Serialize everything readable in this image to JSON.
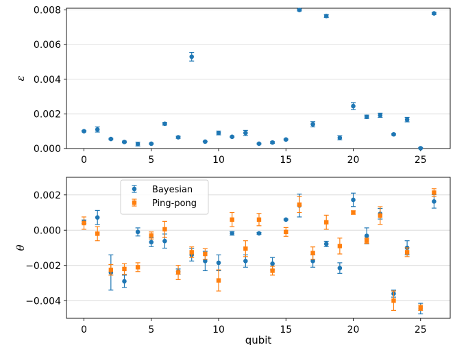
{
  "chart_data": [
    {
      "type": "scatter",
      "ylabel": "ε",
      "xlabel": "",
      "xlim": [
        -1.3,
        27.2
      ],
      "ylim": [
        0,
        0.0081
      ],
      "xticks": [
        0,
        5,
        10,
        15,
        20,
        25
      ],
      "yticks": [
        0.0,
        0.002,
        0.004,
        0.006,
        0.008
      ],
      "ytick_labels": [
        "0.000",
        "0.002",
        "0.004",
        "0.006",
        "0.008"
      ],
      "grid": "horizontal",
      "colors": {
        "series": "#1f77b4"
      },
      "series": [
        {
          "x": [
            0,
            1,
            2,
            3,
            4,
            5,
            6,
            7,
            8,
            9,
            10,
            11,
            12,
            13,
            14,
            15,
            16,
            17,
            18,
            19,
            20,
            21,
            22,
            23,
            24,
            25,
            26
          ],
          "y": [
            0.001,
            0.0011,
            0.00055,
            0.00038,
            0.00026,
            0.00028,
            0.00143,
            0.00065,
            0.0053,
            0.0004,
            0.0009,
            0.00068,
            0.0009,
            0.00028,
            0.00035,
            0.00052,
            0.008,
            0.0014,
            0.00765,
            0.00062,
            0.00245,
            0.00183,
            0.00192,
            0.00082,
            0.00167,
            2e-05,
            0.0078
          ],
          "err": [
            4e-05,
            0.00015,
            4e-05,
            5e-05,
            0.00011,
            3e-05,
            8e-05,
            6e-05,
            0.00025,
            2e-05,
            0.00011,
            3e-05,
            0.00015,
            3e-05,
            5e-05,
            3e-05,
            6e-05,
            0.00015,
            8e-05,
            0.00012,
            0.0002,
            0.0001,
            0.00012,
            4e-05,
            0.00013,
            4e-05,
            6e-05
          ]
        }
      ]
    },
    {
      "type": "scatter",
      "ylabel": "θ",
      "xlabel": "qubit",
      "xlim": [
        -1.3,
        27.2
      ],
      "ylim": [
        -0.005,
        0.003
      ],
      "xticks": [
        0,
        5,
        10,
        15,
        20,
        25
      ],
      "yticks": [
        0.002,
        0.0,
        -0.002,
        -0.004
      ],
      "ytick_labels": [
        "0.002",
        "0.000",
        "−0.002",
        "−0.004"
      ],
      "grid": "horizontal",
      "legend": "upper-left",
      "series": [
        {
          "name": "Bayesian",
          "color": "#1f77b4",
          "marker": "circle",
          "x": [
            0,
            1,
            2,
            3,
            4,
            5,
            6,
            7,
            8,
            9,
            10,
            11,
            12,
            13,
            14,
            15,
            16,
            17,
            18,
            19,
            20,
            21,
            22,
            23,
            24,
            25,
            26
          ],
          "y": [
            0.00048,
            0.00072,
            -0.0024,
            -0.0029,
            -0.0001,
            -0.00068,
            -0.00062,
            -0.00235,
            -0.0014,
            -0.00175,
            -0.00185,
            -0.00018,
            -0.00175,
            -0.00018,
            -0.0019,
            0.0006,
            0.0014,
            -0.00175,
            -0.00078,
            -0.00215,
            0.00172,
            -0.00032,
            0.00093,
            -0.0036,
            -0.001,
            -0.00445,
            0.00163
          ],
          "err": [
            0.0001,
            0.0004,
            0.001,
            0.00035,
            0.00023,
            0.00025,
            0.0004,
            0.00015,
            0.00035,
            0.00055,
            0.00045,
            0.0001,
            0.00035,
            5e-05,
            0.00035,
            3e-05,
            0.00065,
            0.00035,
            0.00015,
            0.0003,
            0.00038,
            0.00045,
            0.0003,
            0.0002,
            0.0004,
            0.0003,
            0.00038
          ]
        },
        {
          "name": "Ping-pong",
          "color": "#ff7f0e",
          "marker": "square",
          "x": [
            0,
            1,
            2,
            3,
            4,
            5,
            6,
            7,
            8,
            9,
            10,
            11,
            12,
            13,
            14,
            15,
            16,
            17,
            18,
            19,
            20,
            21,
            22,
            23,
            24,
            25,
            26
          ],
          "y": [
            0.0004,
            -0.0002,
            -0.00225,
            -0.0022,
            -0.0021,
            -0.0003,
            5e-05,
            -0.0024,
            -0.00125,
            -0.00135,
            -0.00285,
            0.0006,
            -0.00105,
            0.0006,
            -0.0023,
            -0.0001,
            0.00145,
            -0.0013,
            0.00045,
            -0.0009,
            0.001,
            -0.0006,
            0.00083,
            -0.004,
            -0.00125,
            -0.0044,
            0.00213
          ],
          "err": [
            0.00035,
            0.0004,
            0.0003,
            0.0003,
            0.00025,
            0.0002,
            0.00045,
            0.0004,
            0.0003,
            0.0003,
            0.0006,
            0.0004,
            0.00045,
            0.00035,
            0.00025,
            0.00025,
            0.00045,
            0.00035,
            0.0004,
            0.00045,
            0.0001,
            0.00015,
            0.0005,
            0.00055,
            0.00025,
            0.00015,
            0.00022
          ]
        }
      ]
    }
  ]
}
